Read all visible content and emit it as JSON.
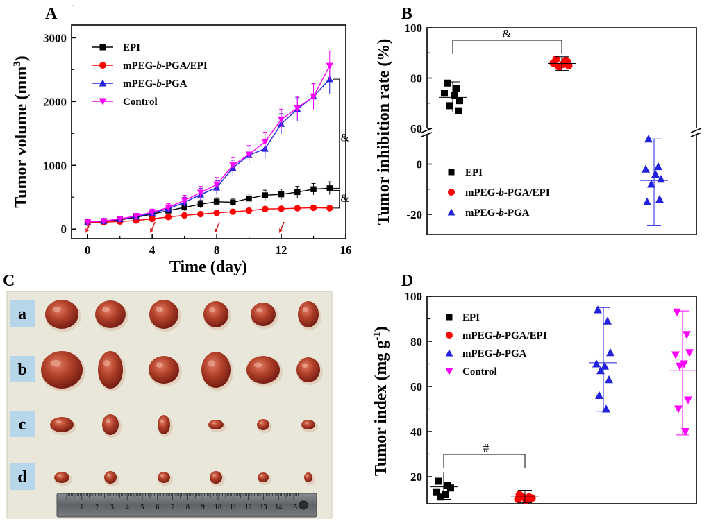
{
  "panels": {
    "A": {
      "letter": "A",
      "chart_data": {
        "type": "line",
        "xlabel": "Time (day)",
        "ylabel": "Tumor volume (mm",
        "ylabel_sup": "3",
        "ylabel_end": ")",
        "xlim": [
          -1,
          16
        ],
        "ylim": [
          -150,
          3200
        ],
        "xticks": [
          "0",
          "4",
          "8",
          "12",
          "16"
        ],
        "yticks": [
          "0",
          "1000",
          "2000",
          "3000"
        ],
        "x": [
          0,
          1,
          2,
          3,
          4,
          5,
          6,
          7,
          8,
          9,
          10,
          11,
          12,
          13,
          14,
          15
        ],
        "series": [
          {
            "name": "EPI",
            "color": "#000000",
            "marker": "square",
            "values": [
              105,
              120,
              145,
              185,
              235,
              290,
              340,
              390,
              430,
              420,
              480,
              530,
              545,
              580,
              625,
              640
            ],
            "errors": [
              20,
              20,
              25,
              25,
              30,
              40,
              50,
              60,
              60,
              60,
              70,
              80,
              80,
              90,
              90,
              100
            ]
          },
          {
            "name": "mPEG-b-PGA/EPI",
            "color": "#ff0000",
            "marker": "circle",
            "values": [
              100,
              108,
              118,
              135,
              160,
              190,
              215,
              235,
              255,
              272,
              290,
              315,
              320,
              328,
              335,
              330
            ],
            "errors": [
              15,
              15,
              15,
              18,
              20,
              20,
              20,
              25,
              25,
              25,
              25,
              30,
              30,
              30,
              30,
              30
            ]
          },
          {
            "name": "mPEG-b-PGA",
            "color": "#2222dd",
            "marker": "triangle-up",
            "values": [
              110,
              125,
              155,
              195,
              250,
              320,
              420,
              540,
              650,
              960,
              1160,
              1260,
              1650,
              1880,
              2080,
              2350
            ],
            "errors": [
              25,
              25,
              30,
              40,
              50,
              60,
              80,
              100,
              110,
              120,
              140,
              150,
              160,
              180,
              200,
              230
            ]
          },
          {
            "name": "Control",
            "color": "#ff00ff",
            "marker": "triangle-down",
            "values": [
              110,
              128,
              160,
              205,
              265,
              340,
              450,
              570,
              700,
              1000,
              1170,
              1370,
              1720,
              1900,
              2080,
              2560
            ],
            "errors": [
              25,
              25,
              30,
              40,
              50,
              60,
              80,
              100,
              110,
              120,
              140,
              150,
              160,
              180,
              200,
              230
            ]
          }
        ],
        "arrows_at_days": [
          0,
          4,
          8,
          12
        ],
        "annotations": [
          "&",
          "&"
        ]
      }
    },
    "B": {
      "letter": "B",
      "chart_data": {
        "type": "scatter",
        "ylabel": "Tumor inhibition rate (%)",
        "ylim_upper": [
          60,
          100
        ],
        "ylim_lower": [
          -28,
          12
        ],
        "yticks": [
          "100",
          "80",
          "60",
          "0",
          "-20"
        ],
        "groups": [
          {
            "name": "EPI",
            "color": "#000000",
            "marker": "square",
            "values": [
              78,
              76,
              74,
              73,
              71,
              69,
              67
            ],
            "mean": 72.3,
            "sd_low": 66.5,
            "sd_high": 78.5
          },
          {
            "name": "mPEG-b-PGA/EPI",
            "color": "#ff0000",
            "marker": "circle",
            "values": [
              87.5,
              87,
              86,
              85.5,
              85,
              84.5,
              86.5
            ],
            "mean": 85.8,
            "sd_low": 83,
            "sd_high": 88.5
          },
          {
            "name": "mPEG-b-PGA",
            "color": "#2222dd",
            "marker": "triangle-up",
            "values": [
              10,
              -1,
              -2,
              -4,
              -6,
              -8,
              -14,
              -15
            ],
            "mean": -6.5,
            "sd_low": -24.5,
            "sd_high": 10
          }
        ],
        "annotation": "&"
      }
    },
    "C": {
      "letter": "C",
      "row_labels": [
        "a",
        "b",
        "c",
        "d"
      ],
      "ruler_numbers": [
        "1",
        "2",
        "3",
        "4",
        "5",
        "6",
        "7",
        "8",
        "9",
        "10",
        "11",
        "12",
        "13",
        "14",
        "15"
      ]
    },
    "D": {
      "letter": "D",
      "chart_data": {
        "type": "scatter",
        "ylabel": "Tumor index (mg g",
        "ylabel_sup": "-1",
        "ylabel_end": ")",
        "ylim": [
          8,
          100
        ],
        "yticks": [
          "100",
          "80",
          "60",
          "40",
          "20"
        ],
        "groups": [
          {
            "name": "EPI",
            "color": "#000000",
            "marker": "square",
            "values": [
              18,
              16,
              15,
              13,
              12,
              11
            ],
            "mean": 15.5,
            "sd_low": 10,
            "sd_high": 22
          },
          {
            "name": "mPEG-b-PGA/EPI",
            "color": "#ff0000",
            "marker": "circle",
            "values": [
              12,
              11,
              10.5,
              10,
              9.5,
              11
            ],
            "mean": 11,
            "sd_low": 8.5,
            "sd_high": 14
          },
          {
            "name": "mPEG-b-PGA",
            "color": "#2222dd",
            "marker": "triangle-up",
            "values": [
              94,
              89,
              75,
              70,
              69,
              67,
              63,
              56,
              50
            ],
            "mean": 70.5,
            "sd_low": 49,
            "sd_high": 95
          },
          {
            "name": "Control",
            "color": "#ff00ff",
            "marker": "triangle-down",
            "values": [
              93,
              83,
              75,
              74,
              70,
              69,
              54,
              50,
              40
            ],
            "mean": 67,
            "sd_low": 38.5,
            "sd_high": 93.5
          }
        ],
        "annotation": "#"
      }
    }
  }
}
